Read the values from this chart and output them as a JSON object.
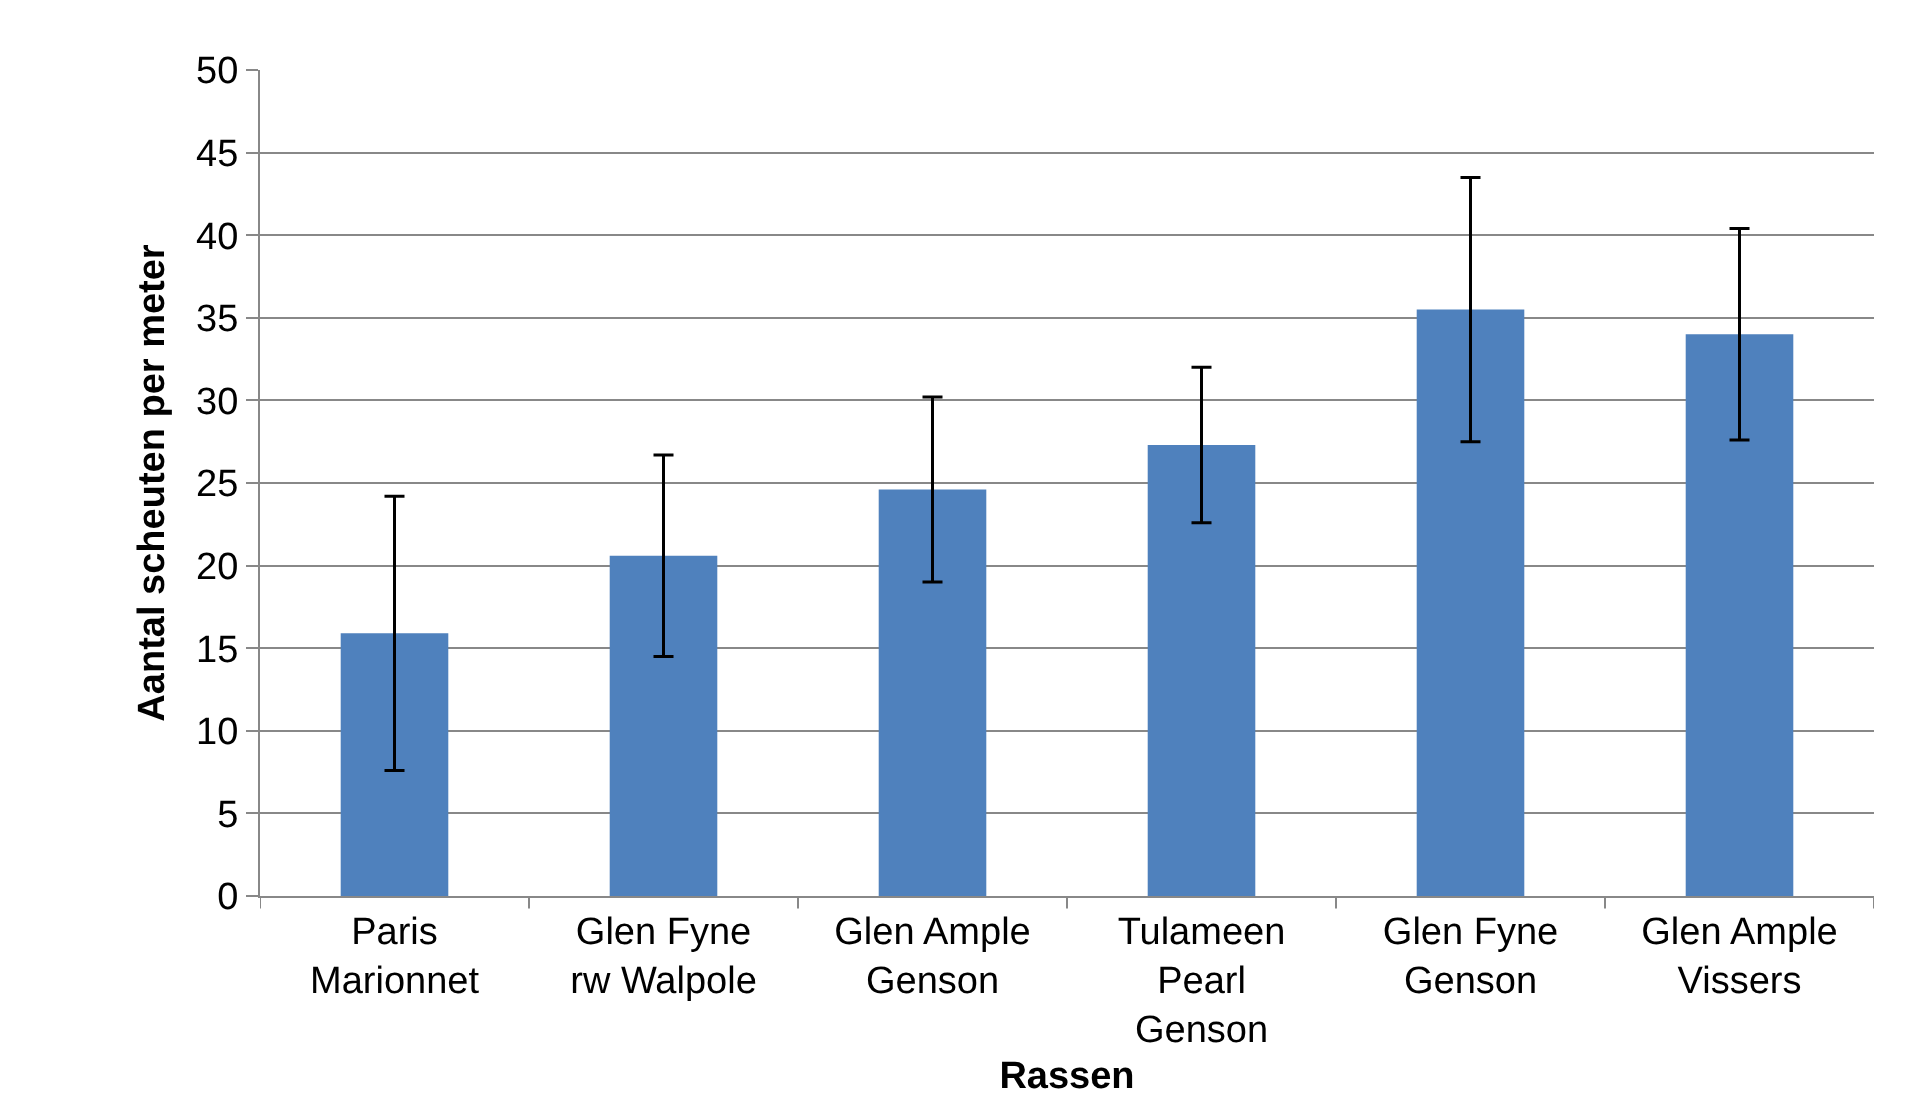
{
  "chart_data": {
    "type": "bar",
    "xlabel": "Rassen",
    "ylabel": "Aantal scheuten per meter",
    "categories": [
      "Paris Marionnet",
      "Glen Fyne rw Walpole",
      "Glen Ample Genson",
      "Tulameen Pearl Genson",
      "Glen Fyne Genson",
      "Glen Ample Vissers"
    ],
    "values": [
      15.9,
      20.6,
      24.6,
      27.3,
      35.5,
      34.0
    ],
    "errors": [
      8.3,
      6.1,
      5.6,
      4.7,
      8.0,
      6.4
    ],
    "color": "#4f81bd",
    "ylim": [
      0,
      50
    ],
    "yticks": [
      0,
      5,
      10,
      15,
      20,
      25,
      30,
      35,
      40,
      45,
      50
    ],
    "grid": "y"
  }
}
